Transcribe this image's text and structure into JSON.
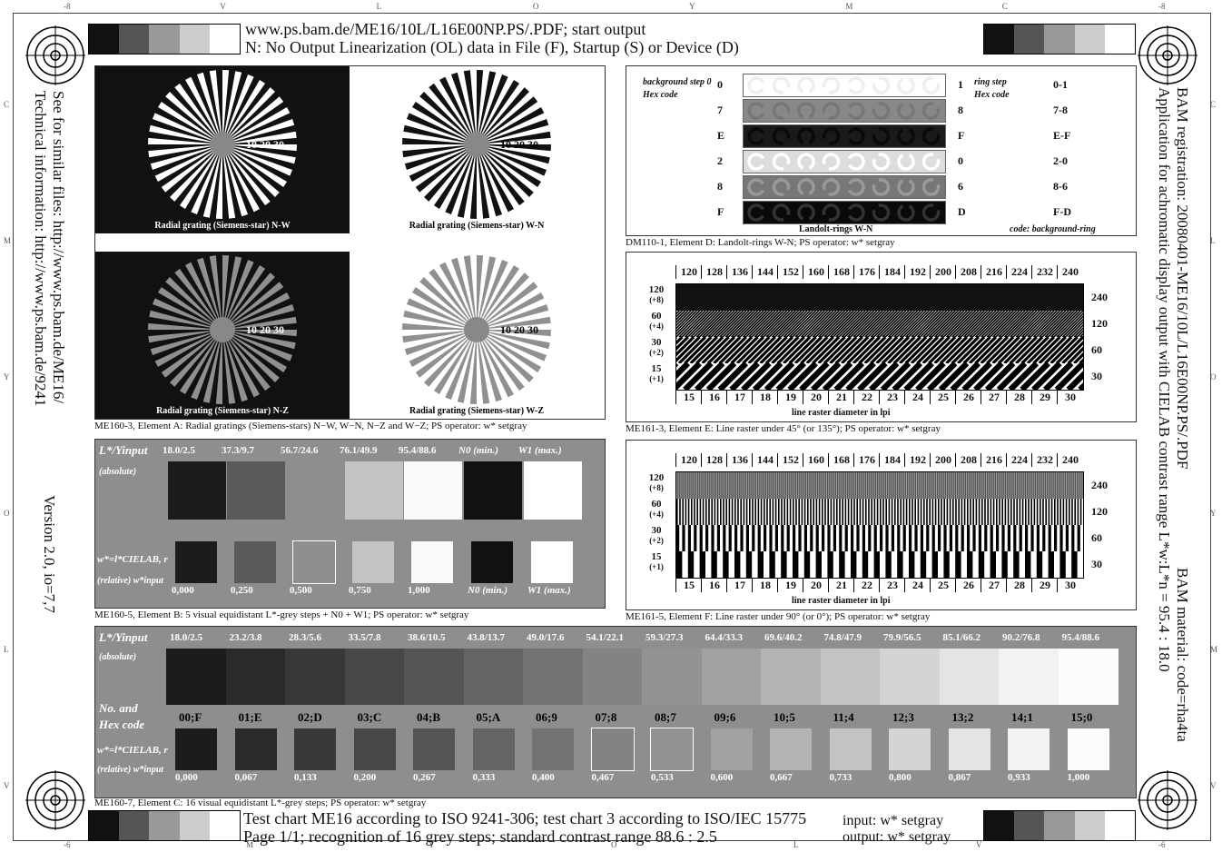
{
  "header": {
    "line1": "www.ps.bam.de/ME16/10L/L16E00NP.PS/.PDF; start output",
    "line2": "N: No Output Linearization (OL) data in File (F), Startup (S) or Device (D)"
  },
  "footer": {
    "line1": "Test chart ME16 according to ISO 9241-306; test chart 3 according to ISO/IEC 15775",
    "line2": "Page 1/1; recognition of 16 grey steps; standard contrast range 88.6 : 2.5",
    "input_label": "input: w* setgray",
    "output_label": "output: w* setgray"
  },
  "left_side": {
    "line1": "See for similar files: http://www.ps.bam.de/ME16/",
    "line2": "Technical information: http://www.ps.bam.de/9241",
    "version": "Version 2.0, io=7,7"
  },
  "right_side": {
    "line1": "BAM registration: 20080401-ME16/10L/L16E00NP.PS/.PDF",
    "line1b": "BAM material: code=rha4ta",
    "line2": "Application for achromatic display output with CIELAB contrast range L*w:L*n = 95.4 : 18.0"
  },
  "ruler_top": [
    "-8",
    "V",
    "L",
    "O",
    "Y",
    "M",
    "C",
    "-8"
  ],
  "ruler_bottom": [
    "-6",
    "M",
    "Y",
    "O",
    "L",
    "V",
    "-6"
  ],
  "ruler_left": [
    "C",
    "M",
    "Y",
    "O",
    "L",
    "V"
  ],
  "ruler_right": [
    "C",
    "L",
    "O",
    "Y",
    "M",
    "V"
  ],
  "corner_strip_greys": [
    "#111111",
    "#555555",
    "#999999",
    "#cccccc",
    "#ffffff"
  ],
  "element_a": {
    "stars": [
      {
        "label": "Radial grating (Siemens-star) N-W",
        "bg": "#111111",
        "fg": "#ffffff",
        "nums": "10  20  30"
      },
      {
        "label": "Radial grating (Siemens-star) W-N",
        "bg": "#ffffff",
        "fg": "#111111",
        "nums": "10  20  30"
      },
      {
        "label": "Radial grating (Siemens-star) N-Z",
        "bg": "#111111",
        "fg": "#909090",
        "nums": "10  20  30"
      },
      {
        "label": "Radial grating (Siemens-star) W-Z",
        "bg": "#ffffff",
        "fg": "#909090",
        "nums": "10  20  30"
      }
    ],
    "caption": "ME160-3, Element A: Radial gratings (Siemens-stars) N−W, W−N, N−Z and W−Z; PS operator: w* setgray"
  },
  "element_d": {
    "left_labels": [
      "background step 0",
      "Hex code"
    ],
    "right_labels": [
      "ring step",
      "Hex code"
    ],
    "rows": [
      {
        "bg": "0",
        "ring": "1",
        "code": "0-1",
        "bgcol": "#ffffff",
        "ringcol": "#eeeeee"
      },
      {
        "bg": "7",
        "ring": "8",
        "code": "7-8",
        "bgcol": "#888888",
        "ringcol": "#777777"
      },
      {
        "bg": "E",
        "ring": "F",
        "code": "E-F",
        "bgcol": "#1a1a1a",
        "ringcol": "#0a0a0a"
      },
      {
        "bg": "2",
        "ring": "0",
        "code": "2-0",
        "bgcol": "#dddddd",
        "ringcol": "#ffffff"
      },
      {
        "bg": "8",
        "ring": "6",
        "code": "8-6",
        "bgcol": "#777777",
        "ringcol": "#999999"
      },
      {
        "bg": "F",
        "ring": "D",
        "code": "F-D",
        "bgcol": "#0a0a0a",
        "ringcol": "#333333"
      }
    ],
    "bottom_label": "Landolt-rings W-N",
    "code_label": "code: background-ring",
    "caption": "DM110-1, Element D: Landolt-rings W-N; PS operator: w* setgray"
  },
  "element_e": {
    "top_numbers": [
      "120",
      "128",
      "136",
      "144",
      "152",
      "160",
      "168",
      "176",
      "184",
      "192",
      "200",
      "208",
      "216",
      "224",
      "232",
      "240"
    ],
    "bottom_numbers": [
      "15",
      "16",
      "17",
      "18",
      "19",
      "20",
      "21",
      "22",
      "23",
      "24",
      "25",
      "26",
      "27",
      "28",
      "29",
      "30"
    ],
    "left_labels": [
      [
        "120",
        "(+8)"
      ],
      [
        "60",
        "(+4)"
      ],
      [
        "30",
        "(+2)"
      ],
      [
        "15",
        "(+1)"
      ]
    ],
    "right_labels": [
      "240",
      "120",
      "60",
      "30"
    ],
    "axis_label": "line raster diameter in lpi",
    "caption": "ME161-3, Element E: Line raster under 45° (or 135°); PS operator: w* setgray"
  },
  "element_f": {
    "top_numbers": [
      "120",
      "128",
      "136",
      "144",
      "152",
      "160",
      "168",
      "176",
      "184",
      "192",
      "200",
      "208",
      "216",
      "224",
      "232",
      "240"
    ],
    "bottom_numbers": [
      "15",
      "16",
      "17",
      "18",
      "19",
      "20",
      "21",
      "22",
      "23",
      "24",
      "25",
      "26",
      "27",
      "28",
      "29",
      "30"
    ],
    "left_labels": [
      [
        "120",
        "(+8)"
      ],
      [
        "60",
        "(+4)"
      ],
      [
        "30",
        "(+2)"
      ],
      [
        "15",
        "(+1)"
      ]
    ],
    "right_labels": [
      "240",
      "120",
      "60",
      "30"
    ],
    "axis_label": "line raster diameter in lpi",
    "caption": "ME161-5, Element F: Line raster under 90° (or 0°); PS operator: w* setgray"
  },
  "element_b": {
    "header_label": "L*/Yinput",
    "abs_label": "(absolute)",
    "rel_label1": "w*=l*CIELAB, r",
    "rel_label2": "(relative)  w*input",
    "top_values": [
      "18.0/2.5",
      "37.3/9.7",
      "56.7/24.6",
      "76.1/49.9",
      "95.4/88.6",
      "N0 (min.)",
      "W1 (max.)"
    ],
    "top_greys": [
      "#1c1c1c",
      "#5a5a5a",
      "#8e8e8e",
      "#c4c4c4",
      "#fafafa",
      "#111111",
      "#ffffff"
    ],
    "bottom_greys": [
      "#1c1c1c",
      "#5a5a5a",
      "#8e8e8e",
      "#c4c4c4",
      "#fafafa",
      "#111111",
      "#ffffff"
    ],
    "bottom_values": [
      "0,000",
      "0,250",
      "0,500",
      "0,750",
      "1,000",
      "N0 (min.)",
      "W1 (max.)"
    ],
    "caption": "ME160-5, Element B: 5 visual equidistant L*-grey steps + N0 + W1; PS operator: w* setgray"
  },
  "element_c": {
    "header_label": "L*/Yinput",
    "abs_label": "(absolute)",
    "hex_label1": "No. and",
    "hex_label2": "Hex code",
    "rel_label1": "w*=l*CIELAB, r",
    "rel_label2": "(relative)  w*input",
    "lvalues": [
      "18.0/2.5",
      "23.2/3.8",
      "28.3/5.6",
      "33.5/7.8",
      "38.6/10.5",
      "43.8/13.7",
      "49.0/17.6",
      "54.1/22.1",
      "59.3/27.3",
      "64.4/33.3",
      "69.6/40.2",
      "74.8/47.9",
      "79.9/56.5",
      "85.1/66.2",
      "90.2/76.8",
      "95.4/88.6"
    ],
    "hex": [
      "00;F",
      "01;E",
      "02;D",
      "03;C",
      "04;B",
      "05;A",
      "06;9",
      "07;8",
      "08;7",
      "09;6",
      "10;5",
      "11;4",
      "12;3",
      "13;2",
      "14;1",
      "15;0"
    ],
    "wvalues": [
      "0,000",
      "0,067",
      "0,133",
      "0,200",
      "0,267",
      "0,333",
      "0,400",
      "0,467",
      "0,533",
      "0,600",
      "0,667",
      "0,733",
      "0,800",
      "0,867",
      "0,933",
      "1,000"
    ],
    "greys": [
      "#1c1c1c",
      "#2a2a2a",
      "#383838",
      "#474747",
      "#555555",
      "#646464",
      "#737373",
      "#838383",
      "#929292",
      "#a2a2a2",
      "#b3b3b3",
      "#c3c3c3",
      "#d4d4d4",
      "#e4e4e4",
      "#f2f2f2",
      "#fcfcfc"
    ],
    "caption": "ME160-7, Element C: 16 visual equidistant L*-grey steps; PS operator: w* setgray"
  }
}
